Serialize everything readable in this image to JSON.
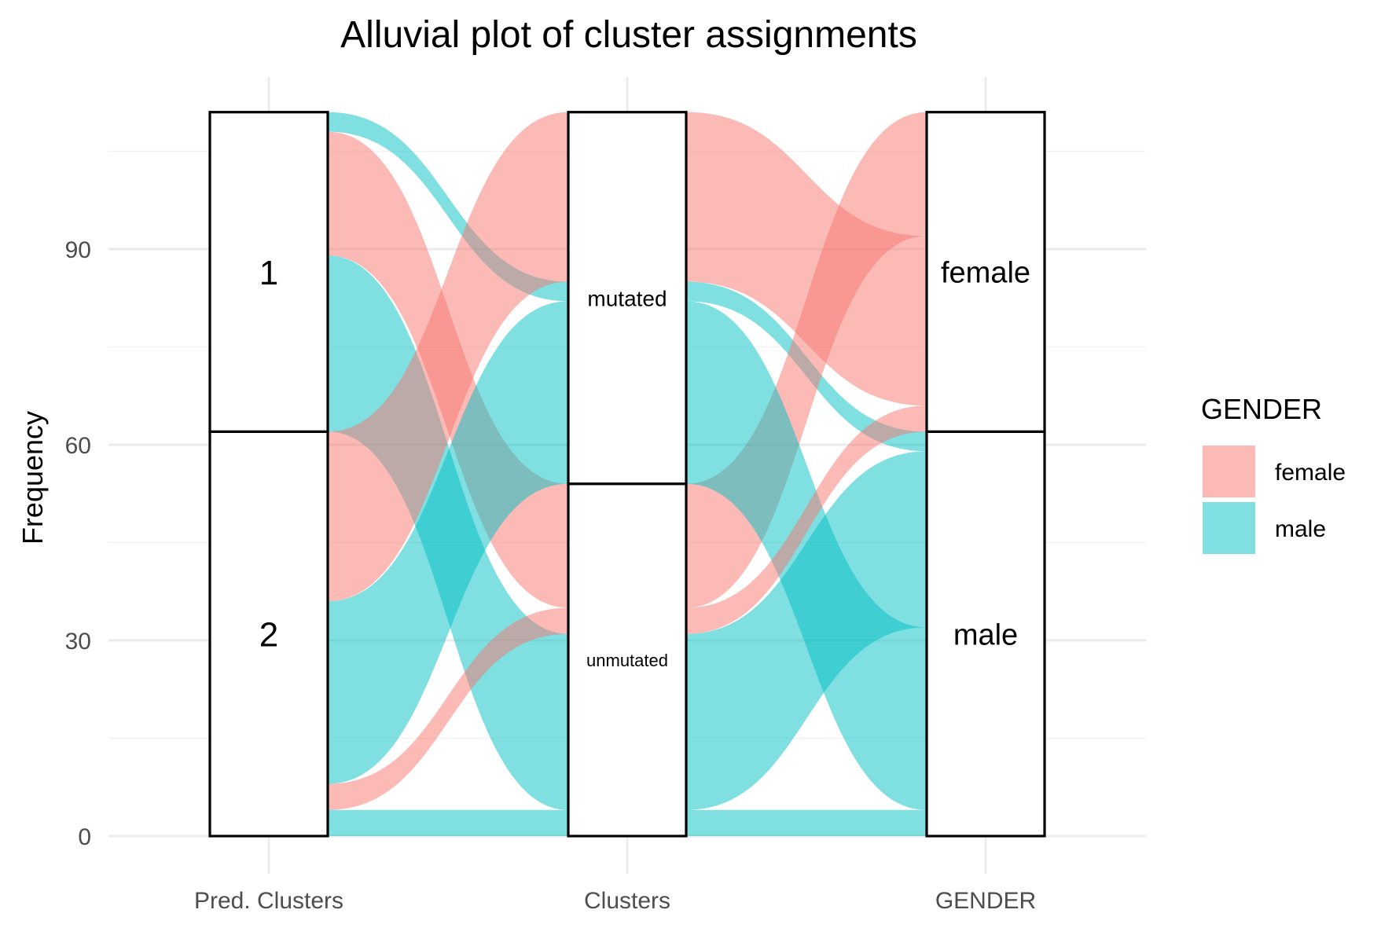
{
  "chart_data": {
    "type": "alluvial",
    "title": "Alluvial plot of cluster assignments",
    "xlabel": "",
    "ylabel": "Frequency",
    "ylim": [
      0,
      110
    ],
    "yticks": [
      0,
      30,
      60,
      90
    ],
    "grid": true,
    "axes": [
      "Pred. Clusters",
      "Clusters",
      "GENDER"
    ],
    "strata": [
      {
        "axis": "Pred. Clusters",
        "levels": [
          {
            "label": "1",
            "value": 49
          },
          {
            "label": "2",
            "value": 62
          }
        ]
      },
      {
        "axis": "Clusters",
        "levels": [
          {
            "label": "mutated",
            "value": 57
          },
          {
            "label": "unmutated",
            "value": 54
          }
        ]
      },
      {
        "axis": "GENDER",
        "levels": [
          {
            "label": "female",
            "value": 49
          },
          {
            "label": "male",
            "value": 62
          }
        ]
      }
    ],
    "fill_variable": "GENDER",
    "legend": {
      "title": "GENDER",
      "position": "right",
      "items": [
        {
          "label": "female",
          "color": "#F8766D"
        },
        {
          "label": "male",
          "color": "#00BFC4"
        }
      ]
    },
    "alluvia": [
      {
        "pred": "1",
        "cluster": "mutated",
        "gender": "male",
        "count": 3
      },
      {
        "pred": "1",
        "cluster": "mutated",
        "gender": "female",
        "count": 0
      },
      {
        "pred": "1",
        "cluster": "unmutated",
        "gender": "female",
        "count": 19
      },
      {
        "pred": "1",
        "cluster": "unmutated",
        "gender": "male",
        "count": 27
      },
      {
        "pred": "2",
        "cluster": "mutated",
        "gender": "female",
        "count": 26
      },
      {
        "pred": "2",
        "cluster": "mutated",
        "gender": "male",
        "count": 28
      },
      {
        "pred": "2",
        "cluster": "unmutated",
        "gender": "female",
        "count": 4
      },
      {
        "pred": "2",
        "cluster": "unmutated",
        "gender": "male",
        "count": 4
      }
    ]
  }
}
